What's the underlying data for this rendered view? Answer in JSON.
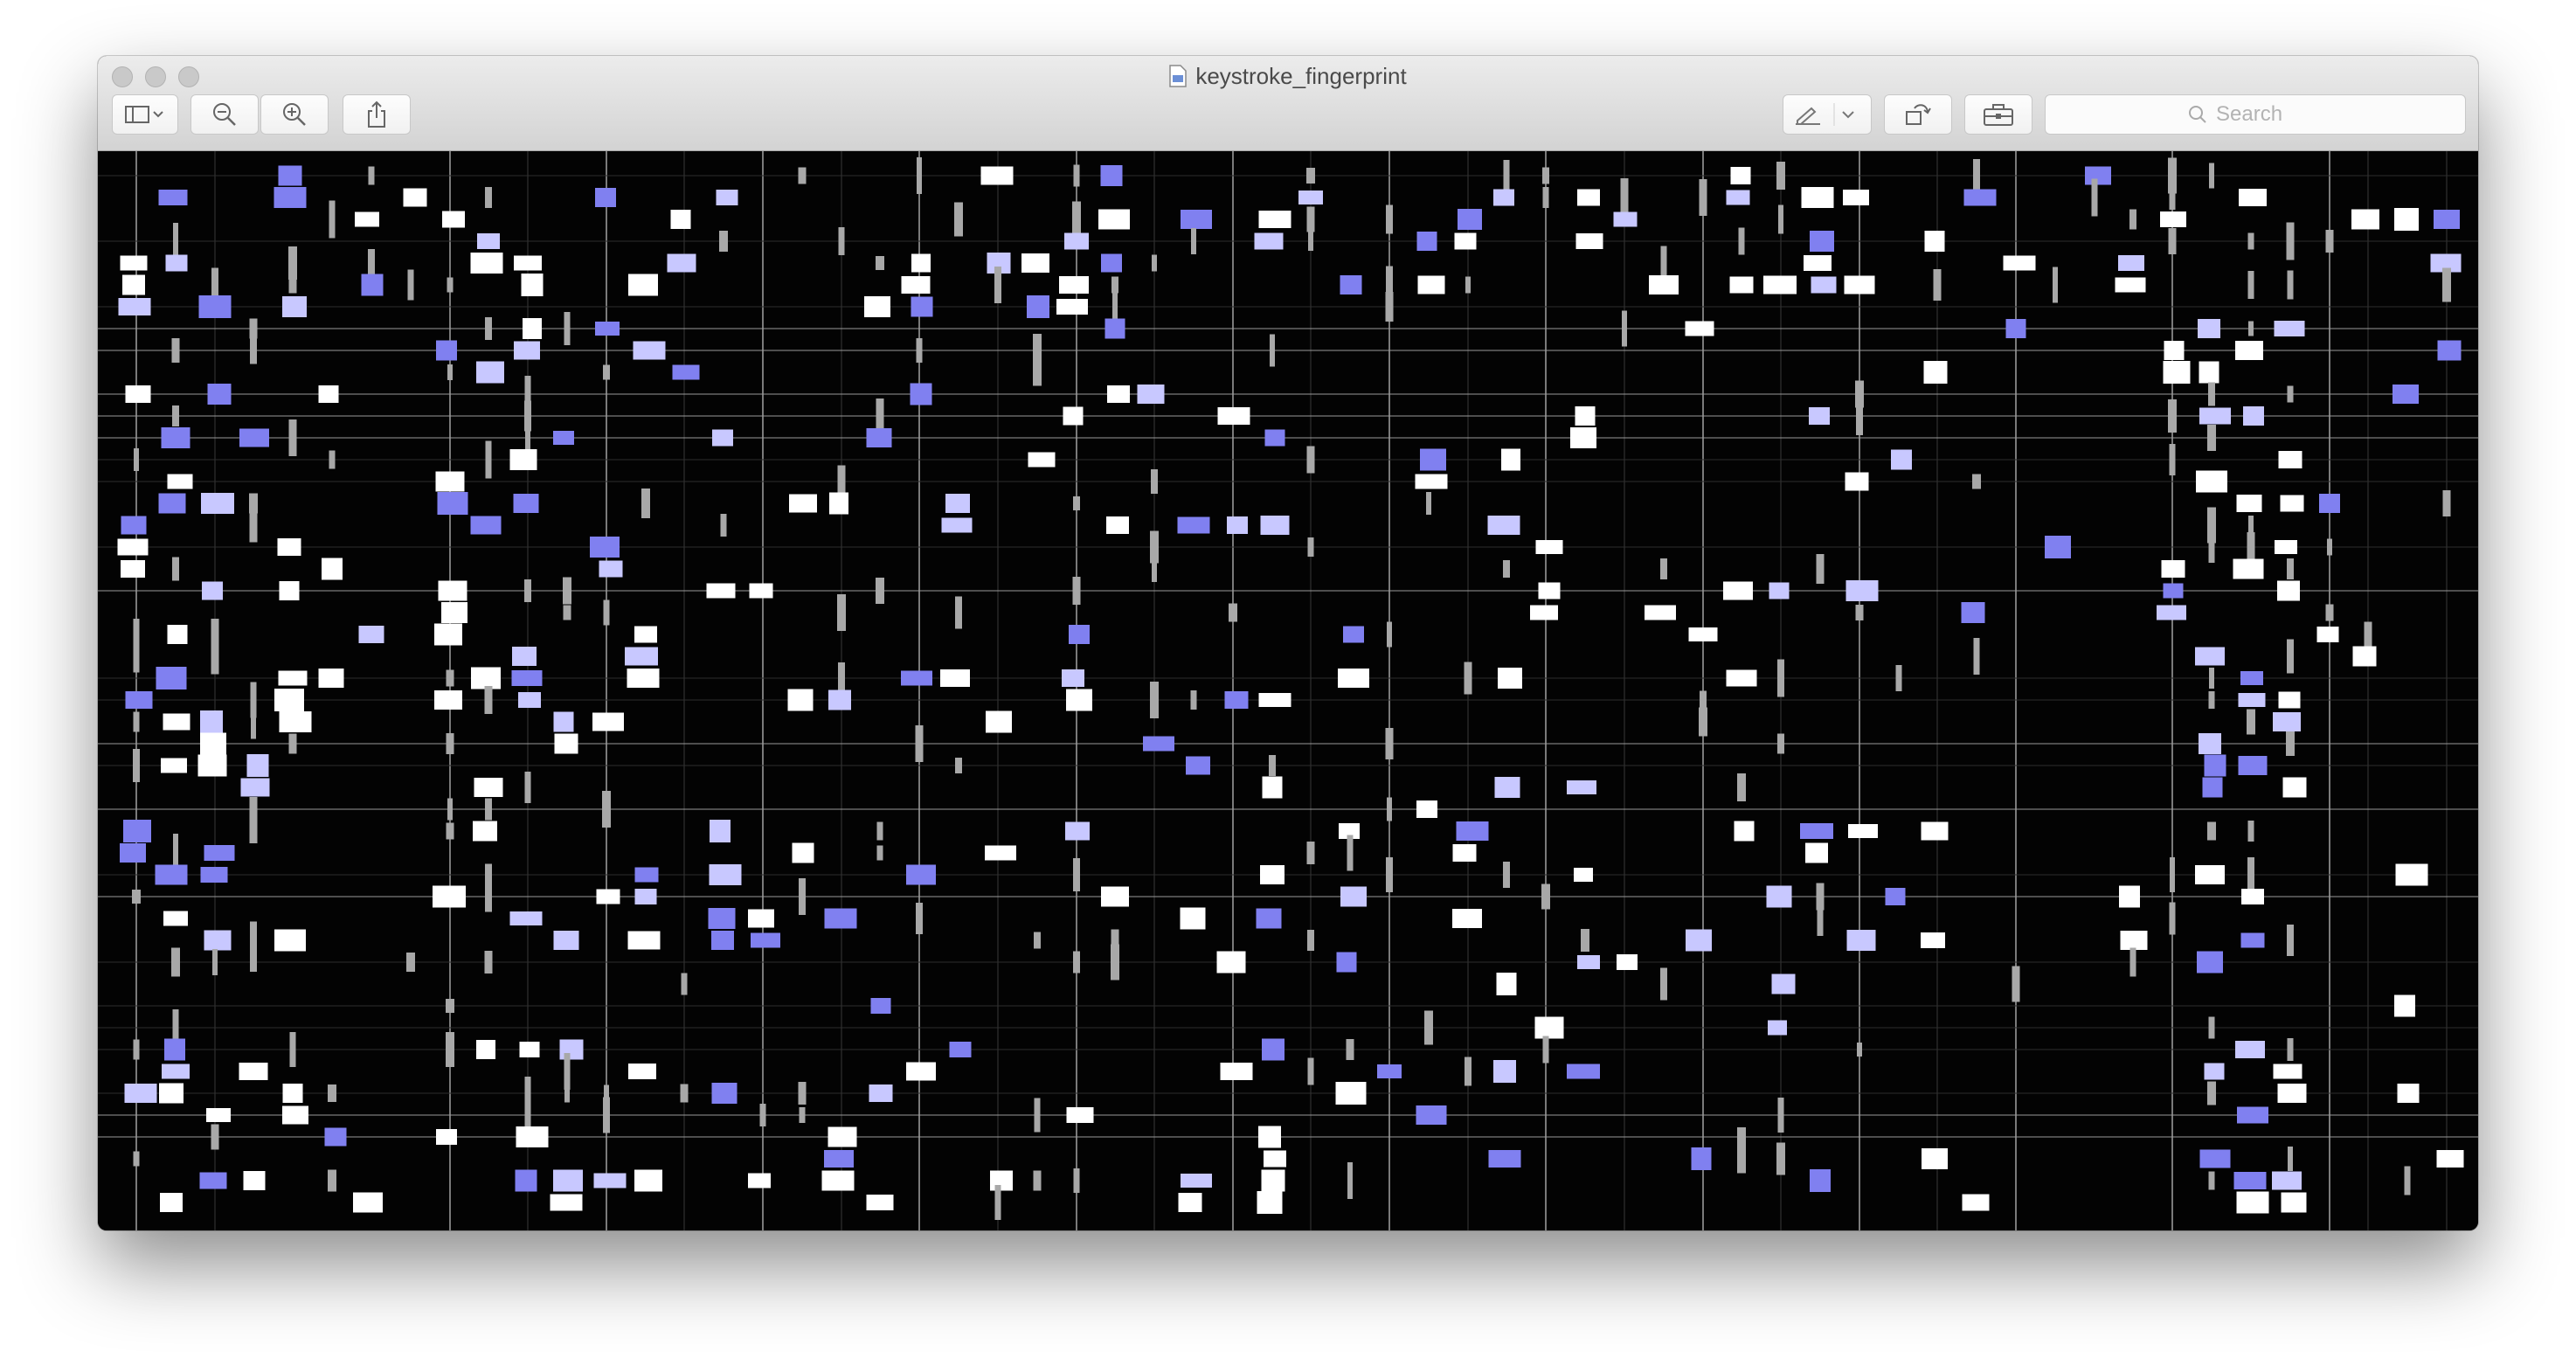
{
  "window": {
    "title": "keystroke_fingerprint"
  },
  "toolbar": {
    "sidebar_icon": "sidebar-toggle-icon",
    "zoom_out_icon": "zoom-out-icon",
    "zoom_in_icon": "zoom-in-icon",
    "share_icon": "share-icon",
    "markup_icon": "pen-markup-icon",
    "rotate_icon": "rotate-icon",
    "toolbox_icon": "toolbox-icon",
    "search_placeholder": "Search"
  },
  "colors": {
    "background": "#030303",
    "white_key": "#ffffff",
    "gray_key": "#a8a8a8",
    "lavender_key": "#c8c8ff",
    "blue_key": "#8080f0",
    "gridline": "#5a5a5a"
  },
  "fingerprint": {
    "columns": 60,
    "rows": 48,
    "description_visible": false
  }
}
